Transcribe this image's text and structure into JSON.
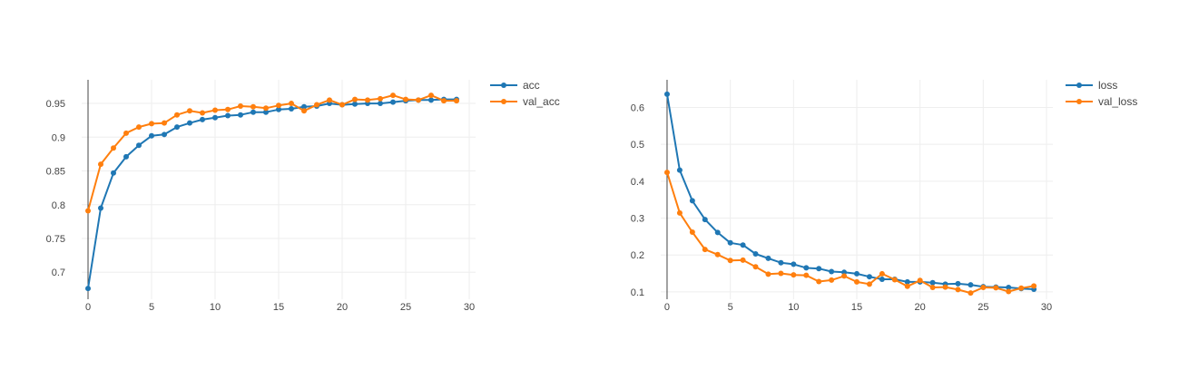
{
  "colors": {
    "series_1": "#1f77b4",
    "series_2": "#ff7f0e",
    "grid": "#eeeeee",
    "zero_line": "#444444"
  },
  "chart_data": [
    {
      "type": "line",
      "title": "",
      "xlabel": "",
      "ylabel": "",
      "x": [
        0,
        1,
        2,
        3,
        4,
        5,
        6,
        7,
        8,
        9,
        10,
        11,
        12,
        13,
        14,
        15,
        16,
        17,
        18,
        19,
        20,
        21,
        22,
        23,
        24,
        25,
        26,
        27,
        28,
        29
      ],
      "xlim": [
        -0.5,
        30.5
      ],
      "ylim": [
        0.66,
        0.985
      ],
      "xticks": [
        0,
        5,
        10,
        15,
        20,
        25,
        30
      ],
      "xticklabels": [
        "0",
        "5",
        "10",
        "15",
        "20",
        "25",
        "30"
      ],
      "yticks": [
        0.7,
        0.75,
        0.8,
        0.85,
        0.9,
        0.95
      ],
      "yticklabels": [
        "0.7",
        "0.75",
        "0.8",
        "0.85",
        "0.9",
        "0.95"
      ],
      "grid": true,
      "legend_position": "top-right-outside",
      "series": [
        {
          "name": "acc",
          "color": "#1f77b4",
          "values": [
            0.676,
            0.795,
            0.847,
            0.871,
            0.888,
            0.902,
            0.904,
            0.915,
            0.921,
            0.926,
            0.929,
            0.932,
            0.933,
            0.937,
            0.937,
            0.941,
            0.942,
            0.945,
            0.946,
            0.95,
            0.948,
            0.949,
            0.95,
            0.95,
            0.952,
            0.954,
            0.955,
            0.955,
            0.956,
            0.956
          ]
        },
        {
          "name": "val_acc",
          "color": "#ff7f0e",
          "values": [
            0.791,
            0.86,
            0.884,
            0.906,
            0.915,
            0.92,
            0.921,
            0.933,
            0.939,
            0.936,
            0.94,
            0.941,
            0.946,
            0.945,
            0.943,
            0.947,
            0.95,
            0.939,
            0.948,
            0.955,
            0.948,
            0.956,
            0.955,
            0.957,
            0.962,
            0.956,
            0.955,
            0.962,
            0.954,
            0.954
          ]
        }
      ]
    },
    {
      "type": "line",
      "title": "",
      "xlabel": "",
      "ylabel": "",
      "x": [
        0,
        1,
        2,
        3,
        4,
        5,
        6,
        7,
        8,
        9,
        10,
        11,
        12,
        13,
        14,
        15,
        16,
        17,
        18,
        19,
        20,
        21,
        22,
        23,
        24,
        25,
        26,
        27,
        28,
        29
      ],
      "xlim": [
        -0.5,
        30.5
      ],
      "ylim": [
        0.08,
        0.675
      ],
      "xticks": [
        0,
        5,
        10,
        15,
        20,
        25,
        30
      ],
      "xticklabels": [
        "0",
        "5",
        "10",
        "15",
        "20",
        "25",
        "30"
      ],
      "yticks": [
        0.1,
        0.2,
        0.3,
        0.4,
        0.5,
        0.6
      ],
      "yticklabels": [
        "0.1",
        "0.2",
        "0.3",
        "0.4",
        "0.5",
        "0.6"
      ],
      "grid": true,
      "legend_position": "top-right-outside",
      "series": [
        {
          "name": "loss",
          "color": "#1f77b4",
          "values": [
            0.636,
            0.43,
            0.347,
            0.296,
            0.261,
            0.233,
            0.227,
            0.203,
            0.191,
            0.179,
            0.175,
            0.165,
            0.163,
            0.155,
            0.153,
            0.149,
            0.141,
            0.134,
            0.134,
            0.127,
            0.127,
            0.125,
            0.121,
            0.122,
            0.119,
            0.114,
            0.113,
            0.112,
            0.109,
            0.107
          ]
        },
        {
          "name": "val_loss",
          "color": "#ff7f0e",
          "values": [
            0.424,
            0.314,
            0.262,
            0.215,
            0.201,
            0.185,
            0.186,
            0.168,
            0.148,
            0.15,
            0.146,
            0.145,
            0.128,
            0.132,
            0.143,
            0.127,
            0.121,
            0.149,
            0.133,
            0.115,
            0.131,
            0.112,
            0.113,
            0.106,
            0.097,
            0.112,
            0.111,
            0.101,
            0.11,
            0.116
          ]
        }
      ]
    }
  ]
}
